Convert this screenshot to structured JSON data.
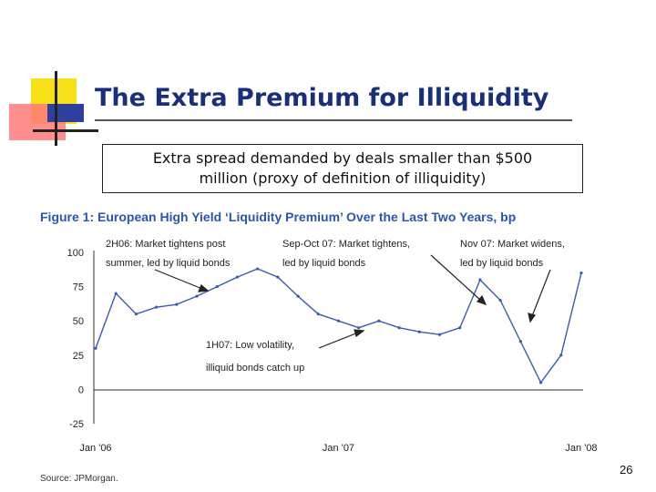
{
  "slide": {
    "title": "The Extra Premium for Illiquidity",
    "callout_line1": "Extra spread demanded by deals smaller than $500",
    "callout_line2": "million (proxy of definition of illiquidity)",
    "figure_title": "Figure 1: European High Yield ‘Liquidity Premium’ Over the Last Two Years, bp",
    "source": "Source: JPMorgan.",
    "page_number": "26"
  },
  "colors": {
    "title": "#1a2f7a",
    "figure_title": "#2a55b0",
    "series": "#3a5bb0",
    "deco_yellow": "#f7e017",
    "deco_red": "#ff7a7a",
    "deco_blue": "#2f3f9e"
  },
  "chart_data": {
    "type": "line",
    "title": "",
    "xlabel": "",
    "ylabel": "",
    "ylim": [
      -25,
      100
    ],
    "yticks": [
      "100",
      "75",
      "50",
      "25",
      "0",
      "-25"
    ],
    "xticks": [
      "Jan '06",
      "Jan '07",
      "Jan '08"
    ],
    "grid": false,
    "series": [
      {
        "x": [
          "2006-01",
          "2006-02",
          "2006-03",
          "2006-04",
          "2006-05",
          "2006-06",
          "2006-07",
          "2006-08",
          "2006-09",
          "2006-10",
          "2006-11",
          "2006-12",
          "2007-01",
          "2007-02",
          "2007-03",
          "2007-04",
          "2007-05",
          "2007-06",
          "2007-07",
          "2007-08",
          "2007-09",
          "2007-10",
          "2007-11",
          "2007-12",
          "2008-01"
        ],
        "values": [
          30,
          70,
          55,
          60,
          62,
          68,
          75,
          82,
          88,
          82,
          68,
          55,
          50,
          45,
          50,
          45,
          42,
          40,
          45,
          80,
          65,
          35,
          5,
          25,
          85
        ]
      }
    ],
    "annotations": [
      {
        "line1": "2H06: Market tightens post",
        "line2": "summer, led by liquid bonds"
      },
      {
        "line1": "Sep-Oct 07: Market tightens,",
        "line2": "led by liquid bonds"
      },
      {
        "line1": "Nov 07: Market widens,",
        "line2": "led by liquid bonds"
      },
      {
        "line1": "1H07: Low volatility,",
        "line2": "illiquid bonds catch up"
      }
    ]
  }
}
